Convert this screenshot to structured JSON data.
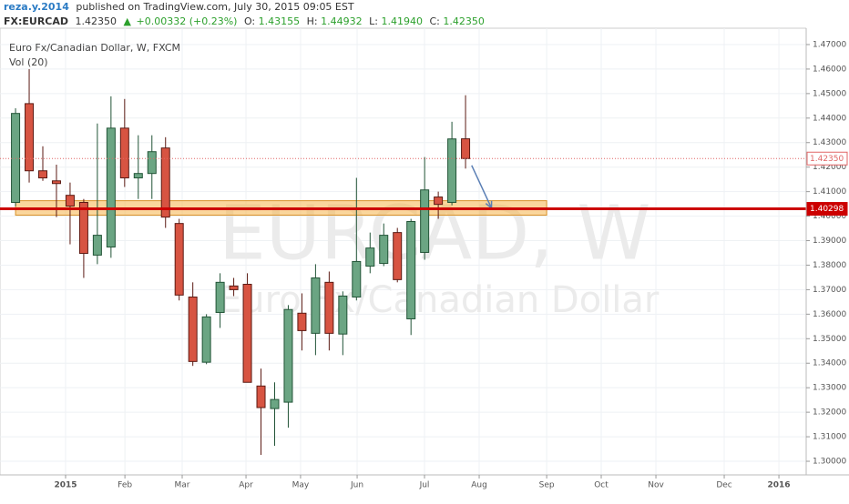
{
  "header": {
    "user": "reza.y.2014",
    "published": "published on TradingView.com, July 30, 2015 09:05 EST",
    "symbol": "FX:EURCAD",
    "last": "1.42350",
    "change": "+0.00332 (+0.23%)",
    "open_label": "O:",
    "open": "1.43155",
    "high_label": "H:",
    "high": "1.44932",
    "low_label": "L:",
    "low": "1.41940",
    "close_label": "C:",
    "close": "1.42350"
  },
  "chart_data": {
    "type": "candlestick",
    "title": "Euro Fx/Canadian Dollar, W, FXCM",
    "subtitle": "Vol (20)",
    "watermark": "EURCAD, W",
    "watermark_subtitle": "Euro Fx/Canadian Dollar",
    "categories": [
      null,
      null,
      null,
      null,
      null,
      null,
      null,
      null,
      null,
      null,
      null,
      null,
      null,
      null,
      null,
      null,
      null,
      null,
      null,
      null,
      null,
      null,
      null,
      null,
      null,
      null,
      null,
      null,
      null,
      null,
      null,
      null,
      null,
      null
    ],
    "open": [
      1.4056,
      1.4459,
      1.4185,
      1.4144,
      1.4085,
      1.4056,
      1.3841,
      1.3874,
      1.4359,
      1.4156,
      1.4174,
      1.4278,
      1.397,
      1.367,
      1.3404,
      1.3607,
      1.3715,
      1.3722,
      1.3307,
      1.3215,
      1.3241,
      1.3604,
      1.3522,
      1.373,
      1.3519,
      1.367,
      1.3796,
      1.3807,
      1.3933,
      1.3581,
      1.3852,
      1.4078,
      1.4056,
      1.43155
    ],
    "high": [
      1.444,
      1.46,
      1.4285,
      1.421,
      1.4137,
      1.407,
      1.4378,
      1.4489,
      1.4478,
      1.433,
      1.433,
      1.4322,
      1.3989,
      1.373,
      1.36,
      1.3767,
      1.3748,
      1.3767,
      1.3378,
      1.3322,
      1.3637,
      1.3685,
      1.3804,
      1.3774,
      1.3693,
      1.4156,
      1.3933,
      1.397,
      1.3952,
      1.3989,
      1.4241,
      1.41,
      1.4385,
      1.44932
    ],
    "low": [
      1.404,
      1.4137,
      1.4144,
      1.3996,
      1.3885,
      1.3748,
      1.3804,
      1.383,
      1.4119,
      1.407,
      1.407,
      1.3952,
      1.3656,
      1.3389,
      1.3396,
      1.3544,
      1.3674,
      1.3322,
      1.3026,
      1.3063,
      1.3137,
      1.3452,
      1.3433,
      1.3452,
      1.3433,
      1.3656,
      1.3767,
      1.3796,
      1.373,
      1.3515,
      1.3822,
      1.3989,
      1.4044,
      1.4194
    ],
    "close": [
      1.4419,
      1.4185,
      1.4156,
      1.4133,
      1.4041,
      1.3848,
      1.3922,
      1.4359,
      1.4156,
      1.4174,
      1.4263,
      1.3996,
      1.3678,
      1.3407,
      1.3589,
      1.373,
      1.37,
      1.3322,
      1.3219,
      1.3252,
      1.3619,
      1.3533,
      1.3748,
      1.3522,
      1.3674,
      1.3815,
      1.387,
      1.3922,
      1.3741,
      1.3978,
      1.4107,
      1.4048,
      1.4315,
      1.4235
    ],
    "up_color": "#6ba583",
    "up_border": "#225437",
    "down_color": "#d75442",
    "down_border": "#5b1a13",
    "xlim": [
      -1.14,
      57.98
    ],
    "ylim": [
      1.29444,
      1.47667
    ],
    "xticks": [
      {
        "value": 3.67,
        "label": "2015"
      },
      {
        "value": 8.02,
        "label": "Feb"
      },
      {
        "value": 12.22,
        "label": "Mar"
      },
      {
        "value": 16.9,
        "label": "Apr"
      },
      {
        "value": 20.9,
        "label": "May"
      },
      {
        "value": 25.05,
        "label": "Jun"
      },
      {
        "value": 29.99,
        "label": "Jul"
      },
      {
        "value": 34.0,
        "label": "Aug"
      },
      {
        "value": 38.95,
        "label": "Sep"
      },
      {
        "value": 42.95,
        "label": "Oct"
      },
      {
        "value": 46.96,
        "label": "Nov"
      },
      {
        "value": 51.97,
        "label": "Dec"
      },
      {
        "value": 55.98,
        "label": "2016"
      }
    ],
    "yticks": [
      {
        "value": 1.3,
        "label": "1.30000"
      },
      {
        "value": 1.31,
        "label": "1.31000"
      },
      {
        "value": 1.32,
        "label": "1.32000"
      },
      {
        "value": 1.33,
        "label": "1.33000"
      },
      {
        "value": 1.34,
        "label": "1.34000"
      },
      {
        "value": 1.35,
        "label": "1.35000"
      },
      {
        "value": 1.36,
        "label": "1.36000"
      },
      {
        "value": 1.37,
        "label": "1.37000"
      },
      {
        "value": 1.38,
        "label": "1.38000"
      },
      {
        "value": 1.39,
        "label": "1.39000"
      },
      {
        "value": 1.4,
        "label": "1.40000"
      },
      {
        "value": 1.41,
        "label": "1.41000"
      },
      {
        "value": 1.42,
        "label": "1.42000"
      },
      {
        "value": 1.43,
        "label": "1.43000"
      },
      {
        "value": 1.44,
        "label": "1.44000"
      },
      {
        "value": 1.45,
        "label": "1.45000"
      },
      {
        "value": 1.46,
        "label": "1.46000"
      },
      {
        "value": 1.47,
        "label": "1.47000"
      }
    ],
    "grid": true,
    "price_lines": [
      {
        "value": 1.4235,
        "label": "1.42350",
        "color": "#e06666",
        "style": "dotted"
      },
      {
        "value": 1.40298,
        "label": "1.40298",
        "color": "#cc0000",
        "style": "solid"
      }
    ],
    "zone": {
      "x": [
        0,
        38.95
      ],
      "y": [
        1.4004,
        1.4063
      ],
      "color": "#f6b54a"
    },
    "arrow": {
      "x": [
        33.45,
        34.9
      ],
      "y": [
        1.4207,
        1.4033
      ],
      "color": "#5b7fb5"
    }
  }
}
